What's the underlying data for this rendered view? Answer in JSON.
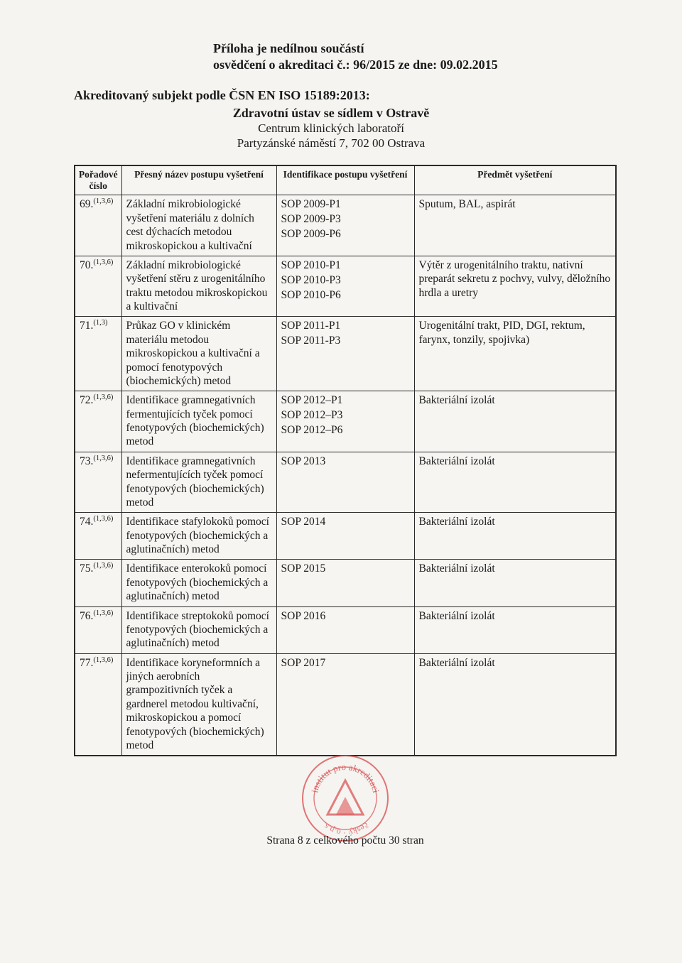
{
  "header": {
    "line1": "Příloha je nedílnou součástí",
    "line2": "osvědčení o akreditaci č.: 96/2015 ze dne: 09.02.2015"
  },
  "subhead": "Akreditovaný subjekt podle ČSN EN ISO 15189:2013:",
  "org": {
    "name": "Zdravotní ústav se sídlem v Ostravě",
    "sub": "Centrum klinických laboratoří",
    "addr": "Partyzánské náměstí 7, 702 00  Ostrava"
  },
  "columns": {
    "num": "Pořadové číslo",
    "name": "Přesný název postupu vyšetření",
    "id": "Identifikace postupu vyšetření",
    "subj": "Předmět vyšetření"
  },
  "rows": [
    {
      "num": "69.",
      "sup": "(1,3,6)",
      "name": "Základní mikrobiologické vyšetření materiálu z dolních cest dýchacích metodou mikroskopickou a kultivační",
      "ids": [
        "SOP 2009-P1",
        "SOP 2009-P3",
        "SOP 2009-P6"
      ],
      "subj": "Sputum, BAL, aspirát"
    },
    {
      "num": "70.",
      "sup": "(1,3,6)",
      "name": "Základní mikrobiologické vyšetření stěru z urogenitálního traktu metodou mikroskopickou a kultivační",
      "ids": [
        "SOP 2010-P1",
        "SOP 2010-P3",
        "SOP 2010-P6"
      ],
      "subj": "Výtěr z urogenitálního traktu, nativní preparát sekretu z pochvy, vulvy, děložního hrdla a uretry"
    },
    {
      "num": "71.",
      "sup": "(1,3)",
      "name": "Průkaz GO v klinickém materiálu metodou mikroskopickou a kultivační a pomocí fenotypových (biochemických) metod",
      "ids": [
        "SOP 2011-P1",
        "SOP 2011-P3"
      ],
      "subj": "Urogenitální trakt, PID, DGI, rektum, farynx, tonzily, spojivka)"
    },
    {
      "num": "72.",
      "sup": "(1,3,6)",
      "name": "Identifikace gramnegativních fermentujících tyček pomocí fenotypových (biochemických) metod",
      "ids": [
        "SOP 2012–P1",
        "SOP 2012–P3",
        "SOP 2012–P6"
      ],
      "subj": "Bakteriální izolát"
    },
    {
      "num": "73.",
      "sup": "(1,3,6)",
      "name": "Identifikace gramnegativních nefermentujících tyček pomocí fenotypových (biochemických) metod",
      "ids": [
        "SOP 2013"
      ],
      "subj": "Bakteriální izolát"
    },
    {
      "num": "74.",
      "sup": "(1,3,6)",
      "name": "Identifikace stafylokoků pomocí fenotypových (biochemických a aglutinačních) metod",
      "ids": [
        "SOP 2014"
      ],
      "subj": "Bakteriální izolát"
    },
    {
      "num": "75.",
      "sup": "(1,3,6)",
      "name": "Identifikace enterokoků pomocí fenotypových (biochemických a aglutinačních) metod",
      "ids": [
        "SOP 2015"
      ],
      "subj": "Bakteriální izolát"
    },
    {
      "num": "76.",
      "sup": "(1,3,6)",
      "name": "Identifikace streptokoků pomocí fenotypových (biochemických a aglutinačních) metod",
      "ids": [
        "SOP 2016"
      ],
      "subj": "Bakteriální izolát"
    },
    {
      "num": "77.",
      "sup": "(1,3,6)",
      "name": "Identifikace koryneformních a jiných aerobních grampozitivních tyček a gardnerel metodou kultivační, mikroskopickou a pomocí fenotypových (biochemických) metod",
      "ids": [
        "SOP 2017"
      ],
      "subj": "Bakteriální izolát"
    }
  ],
  "stamp": {
    "outer_color": "#d94a4a",
    "inner_color": "#d94a4a",
    "text_top": "pro",
    "text_color": "#d94a4a",
    "triangle_fill": "#d94a4a"
  },
  "footer": "Strana 8 z celkového počtu 30 stran",
  "colors": {
    "bg": "#f5f4f1",
    "border": "#2a2a2a",
    "text": "#1a1a1a"
  },
  "typography": {
    "family": "Times New Roman",
    "body_pt": 15.5,
    "header_pt": 18,
    "th_pt": 13.5
  }
}
